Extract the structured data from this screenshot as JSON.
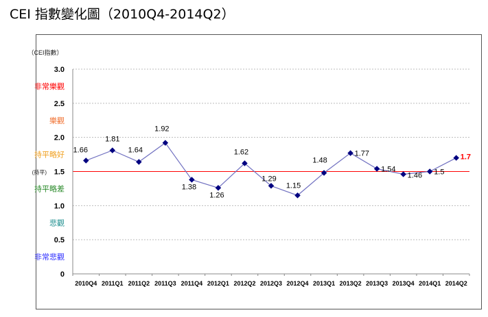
{
  "title": "CEI 指數變化圖（2010Q4-2014Q2）",
  "chart_data": {
    "type": "line",
    "ylabel": "（CEI指數）",
    "ylim": [
      0,
      3.0
    ],
    "yticks": [
      "0",
      "0.5",
      "1.0",
      "1.5",
      "2.0",
      "2.5",
      "3.0"
    ],
    "ytick_values": [
      0,
      0.5,
      1.0,
      1.5,
      2.0,
      2.5,
      3.0
    ],
    "neutral_prefix": "(持平)",
    "grid": "horizontal-dotted",
    "reference_line": {
      "value": 1.5,
      "color": "#ff0000"
    },
    "zones": [
      {
        "label": "非常樂觀",
        "value": 2.75,
        "color": "#ff0000"
      },
      {
        "label": "樂觀",
        "value": 2.25,
        "color": "#f07030"
      },
      {
        "label": "持平略好",
        "value": 1.75,
        "color": "#f0a020"
      },
      {
        "label": "持平略差",
        "value": 1.25,
        "color": "#2a8a2a"
      },
      {
        "label": "悲觀",
        "value": 0.75,
        "color": "#209090"
      },
      {
        "label": "非常悲觀",
        "value": 0.25,
        "color": "#3030ff"
      }
    ],
    "categories": [
      "2010Q4",
      "2011Q1",
      "2011Q2",
      "2011Q3",
      "2011Q4",
      "2012Q1",
      "2012Q2",
      "2012Q3",
      "2012Q4",
      "2013Q1",
      "2013Q2",
      "2013Q3",
      "2013Q4",
      "2014Q1",
      "2014Q2"
    ],
    "series": [
      {
        "name": "CEI",
        "color": "#7070c0",
        "marker_color": "#000080",
        "values": [
          1.66,
          1.81,
          1.64,
          1.92,
          1.38,
          1.26,
          1.62,
          1.29,
          1.15,
          1.48,
          1.77,
          1.54,
          1.46,
          1.5,
          1.7
        ],
        "labels": [
          "1.66",
          "1.81",
          "1.64",
          "1.92",
          "1.38",
          "1.26",
          "1.62",
          "1.29",
          "1.15",
          "1.48",
          "1.77",
          "1.54",
          "1.46",
          "1.5",
          "1.7"
        ],
        "highlight_color": "#ff0000"
      }
    ]
  }
}
